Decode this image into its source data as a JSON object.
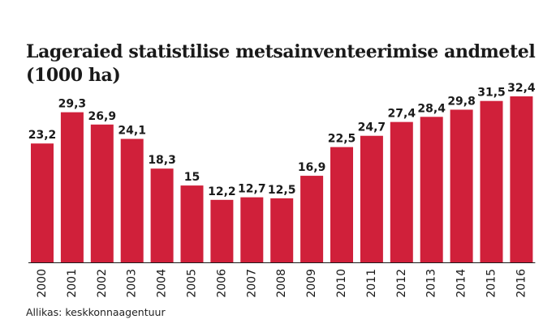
{
  "chart_data": {
    "type": "bar",
    "title_line1": "Lageraied statistilise metsainventeerimise andmetel",
    "title_line2": "(1000 ha)",
    "source": "Allikas: keskkonnaagentuur",
    "categories": [
      "2000",
      "2001",
      "2002",
      "2003",
      "2004",
      "2005",
      "2006",
      "2007",
      "2008",
      "2009",
      "2010",
      "2011",
      "2012",
      "2013",
      "2014",
      "2015",
      "2016"
    ],
    "values": [
      23.2,
      29.3,
      26.9,
      24.1,
      18.3,
      15,
      12.2,
      12.7,
      12.5,
      16.9,
      22.5,
      24.7,
      27.4,
      28.4,
      29.8,
      31.5,
      32.4
    ],
    "value_labels": [
      "23,2",
      "29,3",
      "26,9",
      "24,1",
      "18,3",
      "15",
      "12,2",
      "12,7",
      "12,5",
      "16,9",
      "22,5",
      "24,7",
      "27,4",
      "28,4",
      "29,8",
      "31,5",
      "32,4"
    ],
    "ylim": [
      0,
      32.4
    ],
    "bar_color": "#d0203a",
    "grid": false
  }
}
